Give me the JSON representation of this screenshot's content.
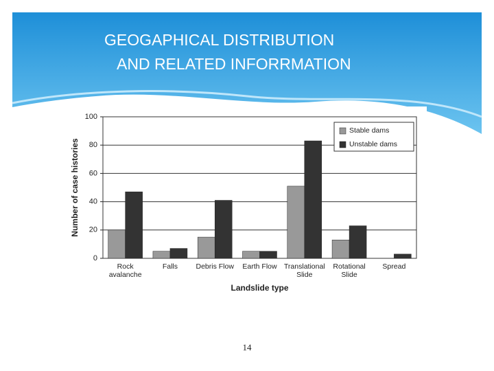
{
  "slide_title": [
    "GEOGAPHICAL DISTRIBUTION",
    "AND  RELATED INFORRMATION"
  ],
  "page_number": "14",
  "chart_data": {
    "type": "bar",
    "x_label": "Landslide type",
    "y_label": "Number of case histories",
    "categories": [
      [
        "Rock",
        "avalanche"
      ],
      [
        "Falls"
      ],
      [
        "Debris Flow"
      ],
      [
        "Earth Flow"
      ],
      [
        "Translational",
        "Slide"
      ],
      [
        "Rotational",
        "Slide"
      ],
      [
        "Spread"
      ]
    ],
    "series": [
      {
        "name": "Stable dams",
        "color": "#999999",
        "values": [
          20,
          5,
          15,
          5,
          51,
          13,
          null
        ]
      },
      {
        "name": "Unstable dams",
        "color": "#333333",
        "values": [
          47,
          7,
          41,
          5,
          83,
          23,
          3
        ]
      }
    ],
    "ylim": [
      0,
      100
    ],
    "yticks": [
      0,
      20,
      40,
      60,
      80,
      100
    ],
    "grid": true,
    "legend": "top-right"
  }
}
